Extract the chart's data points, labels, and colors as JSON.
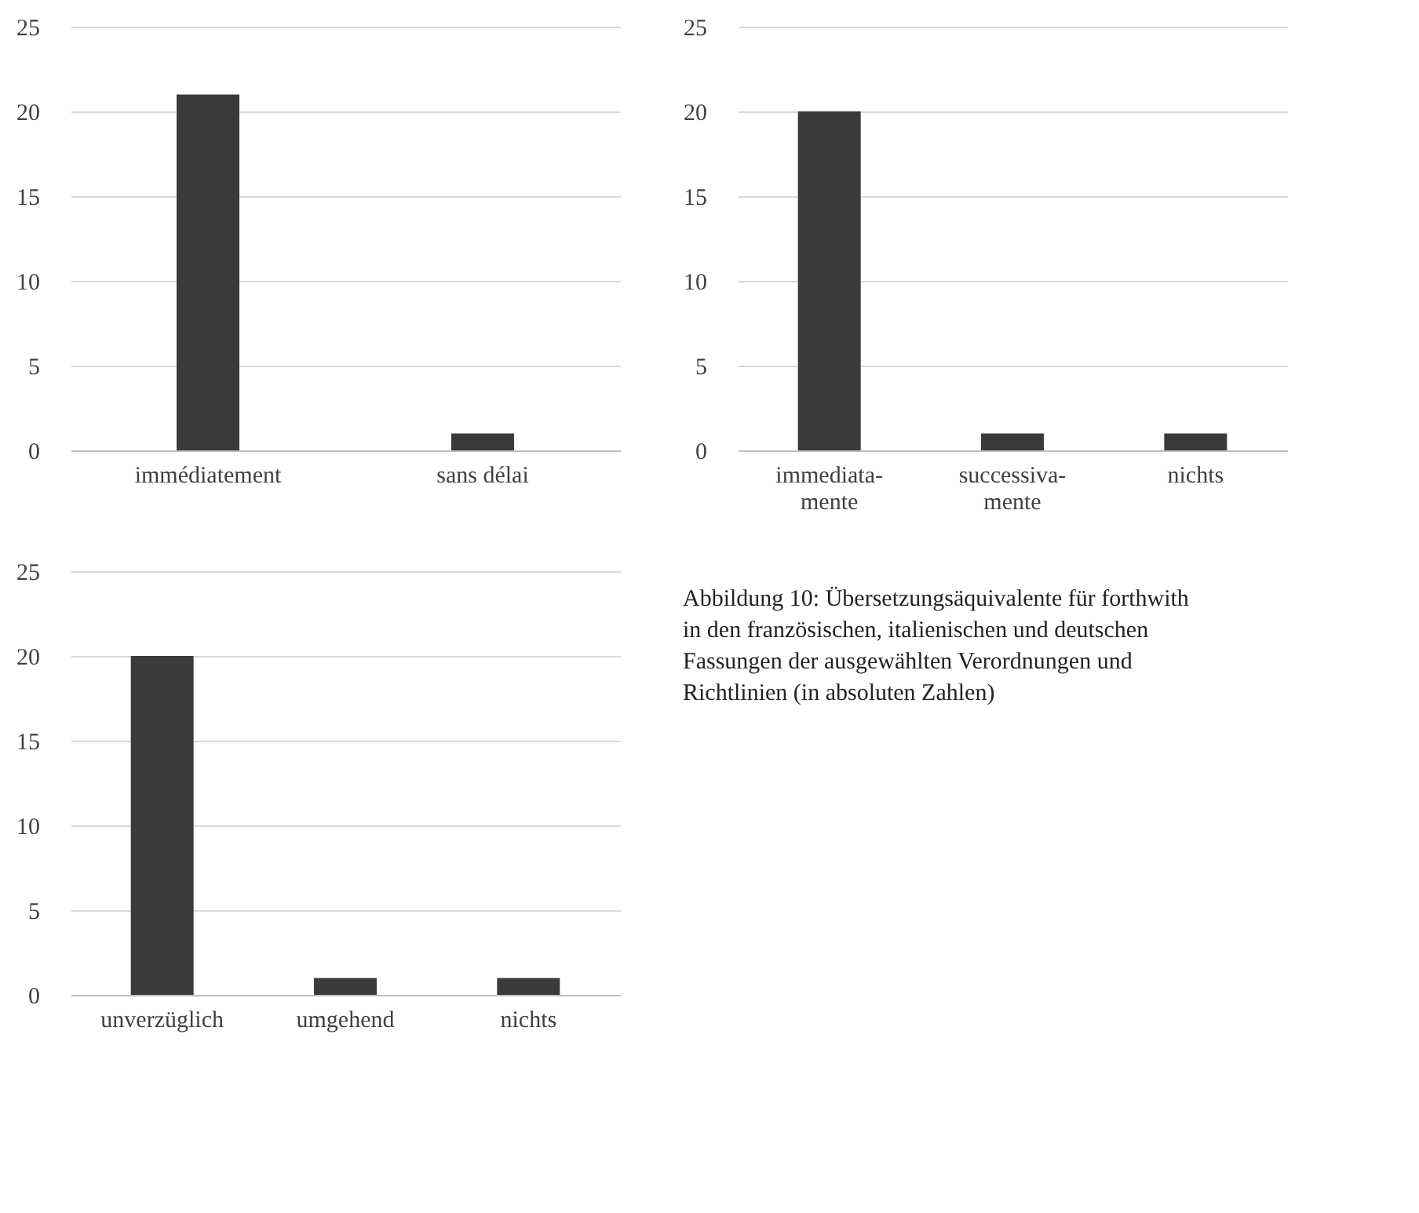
{
  "chart_data": [
    {
      "type": "bar",
      "categories": [
        "immédiatement",
        "sans délai"
      ],
      "values": [
        21,
        1
      ],
      "color": "#3b3b3b",
      "ylim": [
        0,
        25
      ],
      "yticks": [
        0,
        5,
        10,
        15,
        20,
        25
      ],
      "grid": "y"
    },
    {
      "type": "bar",
      "categories": [
        "immediata-\nmente",
        "successiva-\nmente",
        "nichts"
      ],
      "values": [
        20,
        1,
        1
      ],
      "color": "#3b3b3b",
      "ylim": [
        0,
        25
      ],
      "yticks": [
        0,
        5,
        10,
        15,
        20,
        25
      ],
      "grid": "y"
    },
    {
      "type": "bar",
      "categories": [
        "unverzüglich",
        "umgehend",
        "nichts"
      ],
      "values": [
        20,
        1,
        1
      ],
      "color": "#3b3b3b",
      "ylim": [
        0,
        25
      ],
      "yticks": [
        0,
        5,
        10,
        15,
        20,
        25
      ],
      "grid": "y"
    },
    {
      "type": "other",
      "annotations": [
        "Abbildung 10: Übersetzungsäquivalente für forthwith in den französischen, italienischen und deutschen Fassungen der ausgewählten Verordnungen und Richtlinien (in absoluten Zahlen)"
      ]
    }
  ]
}
